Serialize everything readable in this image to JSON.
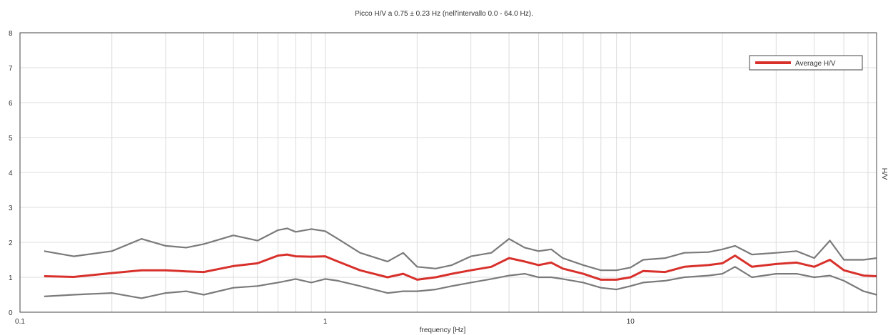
{
  "chart_data": {
    "type": "line",
    "title": "Picco H/V a 0.75 ± 0.23 Hz (nell'intervallo 0.0 - 64.0 Hz).",
    "xlabel": "frequency [Hz]",
    "ylabel": "H/V",
    "x_scale": "log",
    "xlim": [
      0.1,
      64
    ],
    "ylim": [
      0,
      8
    ],
    "x_tick_labels": [
      "0.1",
      "1",
      "10"
    ],
    "x_ticks": [
      0.1,
      1,
      10
    ],
    "y_tick_labels": [
      "0",
      "1",
      "2",
      "3",
      "4",
      "5",
      "6",
      "7",
      "8"
    ],
    "y_ticks": [
      0,
      1,
      2,
      3,
      4,
      5,
      6,
      7,
      8
    ],
    "grid": true,
    "legend_position": "top-right",
    "colors": {
      "average": "#d8312c",
      "bounds": "#7a7a7a",
      "grid": "#dcdcdc",
      "frame": "#444444"
    },
    "series": [
      {
        "name": "Average H/V",
        "role": "average",
        "x": [
          0.12,
          0.15,
          0.2,
          0.25,
          0.3,
          0.35,
          0.4,
          0.5,
          0.6,
          0.7,
          0.75,
          0.8,
          0.9,
          1.0,
          1.1,
          1.3,
          1.6,
          1.8,
          2.0,
          2.3,
          2.6,
          3.0,
          3.5,
          4.0,
          4.5,
          5.0,
          5.5,
          6.0,
          7.0,
          8.0,
          9.0,
          10.0,
          11.0,
          13.0,
          15.0,
          18.0,
          20.0,
          22.0,
          25.0,
          30.0,
          35.0,
          40.0,
          45.0,
          50.0,
          58.0,
          64.0
        ],
        "values": [
          1.03,
          1.01,
          1.12,
          1.2,
          1.2,
          1.17,
          1.15,
          1.32,
          1.4,
          1.62,
          1.65,
          1.6,
          1.59,
          1.6,
          1.45,
          1.2,
          1.0,
          1.1,
          0.93,
          1.0,
          1.1,
          1.2,
          1.3,
          1.55,
          1.45,
          1.35,
          1.42,
          1.25,
          1.1,
          0.93,
          0.93,
          1.0,
          1.18,
          1.15,
          1.3,
          1.35,
          1.4,
          1.62,
          1.3,
          1.38,
          1.42,
          1.3,
          1.5,
          1.2,
          1.05,
          1.03
        ]
      },
      {
        "name": "",
        "role": "upper",
        "x": [
          0.12,
          0.15,
          0.2,
          0.25,
          0.3,
          0.35,
          0.4,
          0.5,
          0.6,
          0.7,
          0.75,
          0.8,
          0.9,
          1.0,
          1.1,
          1.3,
          1.6,
          1.8,
          2.0,
          2.3,
          2.6,
          3.0,
          3.5,
          4.0,
          4.5,
          5.0,
          5.5,
          6.0,
          7.0,
          8.0,
          9.0,
          10.0,
          11.0,
          13.0,
          15.0,
          18.0,
          20.0,
          22.0,
          25.0,
          30.0,
          35.0,
          40.0,
          45.0,
          50.0,
          58.0,
          64.0
        ],
        "values": [
          1.75,
          1.6,
          1.75,
          2.1,
          1.9,
          1.85,
          1.95,
          2.2,
          2.05,
          2.35,
          2.4,
          2.3,
          2.38,
          2.32,
          2.1,
          1.7,
          1.45,
          1.7,
          1.3,
          1.25,
          1.35,
          1.6,
          1.7,
          2.1,
          1.85,
          1.75,
          1.8,
          1.55,
          1.35,
          1.2,
          1.2,
          1.28,
          1.5,
          1.55,
          1.7,
          1.72,
          1.8,
          1.9,
          1.65,
          1.7,
          1.75,
          1.55,
          2.05,
          1.5,
          1.5,
          1.55
        ]
      },
      {
        "name": "",
        "role": "lower",
        "x": [
          0.12,
          0.15,
          0.2,
          0.25,
          0.3,
          0.35,
          0.4,
          0.5,
          0.6,
          0.7,
          0.75,
          0.8,
          0.9,
          1.0,
          1.1,
          1.3,
          1.6,
          1.8,
          2.0,
          2.3,
          2.6,
          3.0,
          3.5,
          4.0,
          4.5,
          5.0,
          5.5,
          6.0,
          7.0,
          8.0,
          9.0,
          10.0,
          11.0,
          13.0,
          15.0,
          18.0,
          20.0,
          22.0,
          25.0,
          30.0,
          35.0,
          40.0,
          45.0,
          50.0,
          58.0,
          64.0
        ],
        "values": [
          0.45,
          0.5,
          0.55,
          0.4,
          0.55,
          0.6,
          0.5,
          0.7,
          0.75,
          0.85,
          0.9,
          0.95,
          0.85,
          0.95,
          0.9,
          0.75,
          0.55,
          0.6,
          0.6,
          0.65,
          0.75,
          0.85,
          0.95,
          1.05,
          1.1,
          1.0,
          1.0,
          0.95,
          0.85,
          0.7,
          0.65,
          0.75,
          0.85,
          0.9,
          1.0,
          1.05,
          1.1,
          1.3,
          1.0,
          1.1,
          1.1,
          1.0,
          1.05,
          0.9,
          0.6,
          0.5
        ]
      }
    ]
  }
}
